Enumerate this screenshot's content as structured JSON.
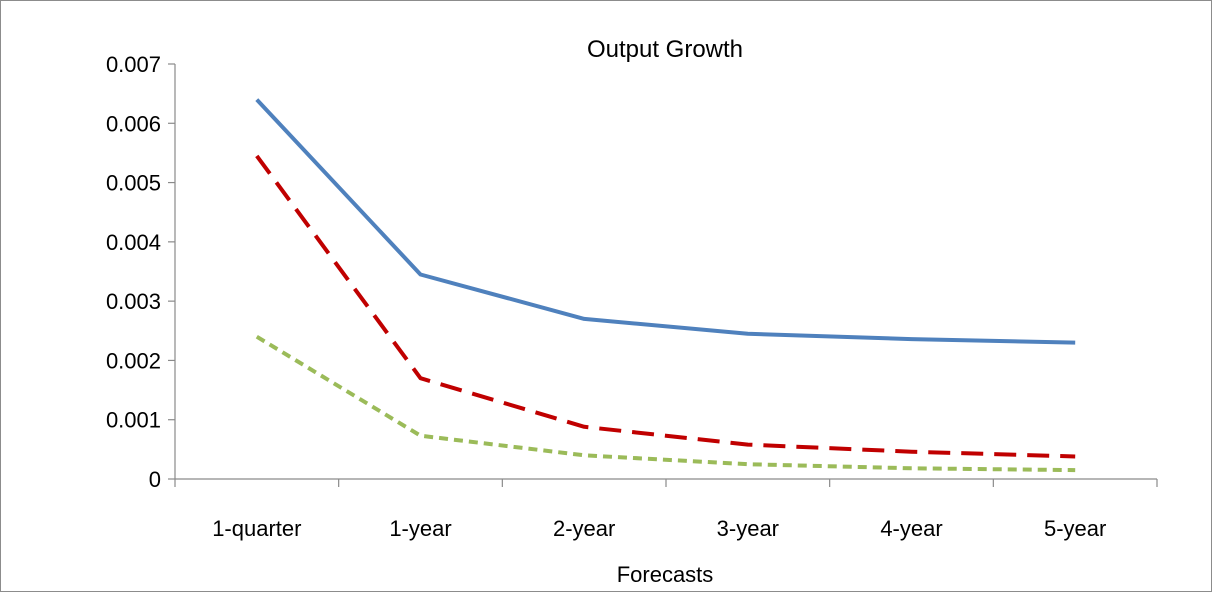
{
  "chart_data": {
    "type": "line",
    "title": "Output Growth",
    "xlabel": "Forecasts",
    "ylabel": "",
    "categories": [
      "1-quarter",
      "1-year",
      "2-year",
      "3-year",
      "4-year",
      "5-year"
    ],
    "ylim": [
      0,
      0.007
    ],
    "yticks": [
      "0",
      "0.001",
      "0.002",
      "0.003",
      "0.004",
      "0.005",
      "0.006",
      "0.007"
    ],
    "grid": false,
    "legend": "none",
    "series": [
      {
        "color": "#4f81bd",
        "dash": "solid",
        "values": [
          0.0064,
          0.00345,
          0.0027,
          0.00245,
          0.00236,
          0.0023
        ]
      },
      {
        "color": "#c00000",
        "dash": "long-dash",
        "values": [
          0.00545,
          0.0017,
          0.00088,
          0.00058,
          0.00046,
          0.00038
        ]
      },
      {
        "color": "#9bbb59",
        "dash": "short-dash",
        "values": [
          0.0024,
          0.00073,
          0.0004,
          0.00025,
          0.00018,
          0.00015
        ]
      }
    ]
  }
}
